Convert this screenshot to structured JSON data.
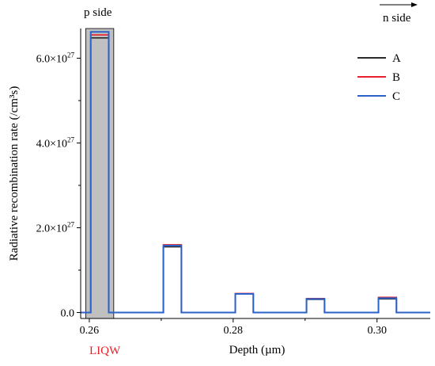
{
  "chart_data": {
    "type": "line",
    "xlabel": "Depth (µm)",
    "ylabel": "Radiative recombination rate (/cm³s)",
    "xlim": [
      0.2588,
      0.3074
    ],
    "ylim": [
      -1.4e+26,
      6.7e+27
    ],
    "x_ticks": [
      {
        "value": 0.26,
        "label": "0.26"
      },
      {
        "value": 0.28,
        "label": "0.28"
      },
      {
        "value": 0.3,
        "label": "0.30"
      }
    ],
    "y_ticks": [
      {
        "value": 0,
        "label": "0.0"
      },
      {
        "value": 2e+27,
        "label": "2.0×10",
        "exp": "27"
      },
      {
        "value": 4e+27,
        "label": "4.0×10",
        "exp": "27"
      },
      {
        "value": 6e+27,
        "label": "6.0×10",
        "exp": "27"
      }
    ],
    "grid": false,
    "legend_position": "top-right",
    "annotations": {
      "left_top": "p side",
      "right_top": "n side",
      "region_label": "LIQW"
    },
    "highlight_region": {
      "x": [
        0.2595,
        0.2634
      ],
      "color": "#c0c0c0"
    },
    "wells": [
      {
        "x": [
          0.2602,
          0.2627
        ]
      },
      {
        "x": [
          0.2703,
          0.2728
        ]
      },
      {
        "x": [
          0.2803,
          0.2828
        ]
      },
      {
        "x": [
          0.2902,
          0.2927
        ]
      },
      {
        "x": [
          0.3002,
          0.3027
        ]
      }
    ],
    "series": [
      {
        "name": "A",
        "color": "#2b2b2b",
        "peaks": [
          6.48e+27,
          1.55e+27,
          4.4e+26,
          3.1e+26,
          3.2e+26
        ]
      },
      {
        "name": "B",
        "color": "#e8212b",
        "peaks": [
          6.55e+27,
          1.6e+27,
          4.5e+26,
          3.3e+26,
          3.6e+26
        ]
      },
      {
        "name": "C",
        "color": "#2a62c9",
        "peaks": [
          6.62e+27,
          1.58e+27,
          4.4e+26,
          3.2e+26,
          3.4e+26
        ]
      }
    ]
  }
}
